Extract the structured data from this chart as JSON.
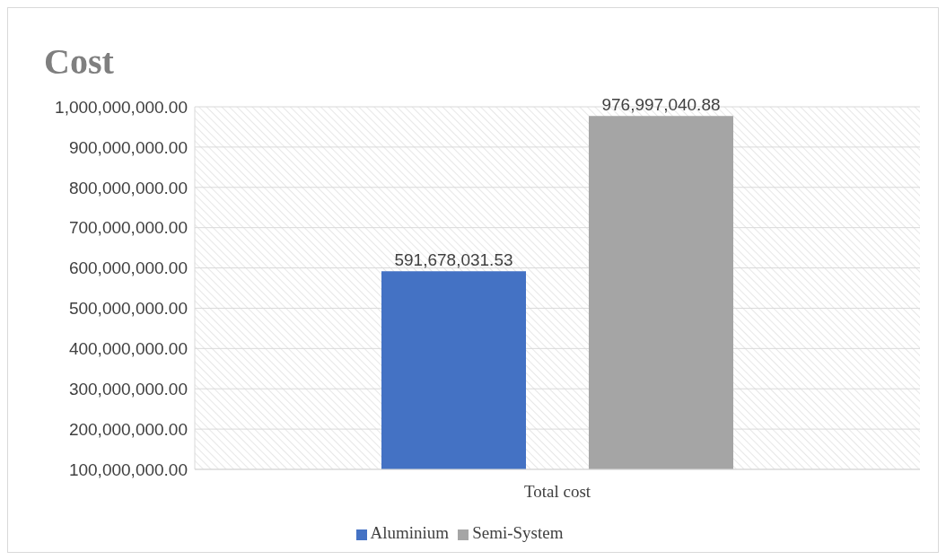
{
  "chart_data": {
    "type": "bar",
    "title": "Cost",
    "categories": [
      "Total cost"
    ],
    "series": [
      {
        "name": "Aluminium",
        "color": "#4472c4",
        "values": [
          591678031.53
        ],
        "value_labels": [
          "591,678,031.53"
        ]
      },
      {
        "name": "Semi-System",
        "color": "#a5a5a5",
        "values": [
          976997040.88
        ],
        "value_labels": [
          "976,997,040.88"
        ]
      }
    ],
    "ylim": [
      100000000,
      1000000000
    ],
    "yticks": [
      {
        "value": 100000000,
        "label": "100,000,000.00"
      },
      {
        "value": 200000000,
        "label": "200,000,000.00"
      },
      {
        "value": 300000000,
        "label": "300,000,000.00"
      },
      {
        "value": 400000000,
        "label": "400,000,000.00"
      },
      {
        "value": 500000000,
        "label": "500,000,000.00"
      },
      {
        "value": 600000000,
        "label": "600,000,000.00"
      },
      {
        "value": 700000000,
        "label": "700,000,000.00"
      },
      {
        "value": 800000000,
        "label": "800,000,000.00"
      },
      {
        "value": 900000000,
        "label": "900,000,000.00"
      },
      {
        "value": 1000000000,
        "label": "1,000,000,000.00"
      }
    ],
    "grid": "y",
    "legend": "bottom"
  }
}
